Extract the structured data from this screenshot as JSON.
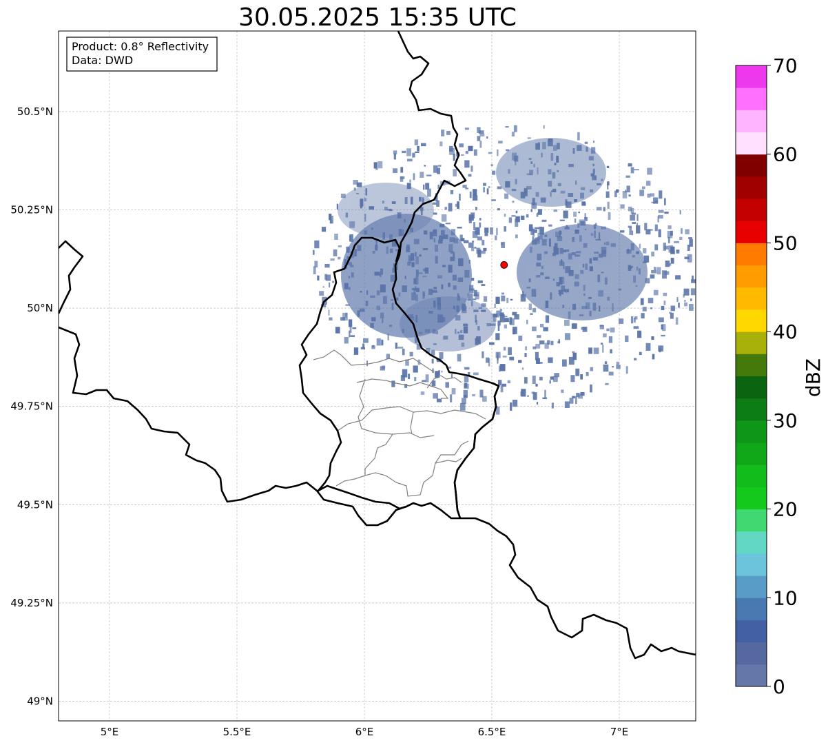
{
  "title": "30.05.2025 15:35 UTC",
  "info_box": {
    "product": "Product: 0.8° Reflectivity",
    "data": "Data: DWD"
  },
  "axes": {
    "lon_range": [
      4.8,
      7.3
    ],
    "lat_range": [
      48.95,
      50.705
    ],
    "x_ticks": [
      {
        "value": 5.0,
        "label": "5°E"
      },
      {
        "value": 5.5,
        "label": "5.5°E"
      },
      {
        "value": 6.0,
        "label": "6°E"
      },
      {
        "value": 6.5,
        "label": "6.5°E"
      },
      {
        "value": 7.0,
        "label": "7°E"
      }
    ],
    "y_ticks": [
      {
        "value": 49.0,
        "label": "49°N"
      },
      {
        "value": 49.25,
        "label": "49.25°N"
      },
      {
        "value": 49.5,
        "label": "49.5°N"
      },
      {
        "value": 49.75,
        "label": "49.75°N"
      },
      {
        "value": 50.0,
        "label": "50°N"
      },
      {
        "value": 50.25,
        "label": "50.25°N"
      },
      {
        "value": 50.5,
        "label": "50.5°N"
      }
    ],
    "grid": true
  },
  "radar_site": {
    "lon": 6.548,
    "lat": 50.11,
    "color": "#ff0000"
  },
  "colorbar": {
    "label": "dBZ",
    "min": 0,
    "max": 70,
    "ticks": [
      {
        "value": 0,
        "label": "0"
      },
      {
        "value": 10,
        "label": "10"
      },
      {
        "value": 20,
        "label": "20"
      },
      {
        "value": 30,
        "label": "30"
      },
      {
        "value": 40,
        "label": "40"
      },
      {
        "value": 50,
        "label": "50"
      },
      {
        "value": 60,
        "label": "60"
      },
      {
        "value": 70,
        "label": "70"
      }
    ],
    "colors": [
      "#6576a8",
      "#5668a0",
      "#4460a4",
      "#4a78b0",
      "#5a9cc8",
      "#6cc4dc",
      "#62d8c4",
      "#40d870",
      "#14c81c",
      "#12bc1a",
      "#10a818",
      "#0e9616",
      "#0c7c14",
      "#0a6410",
      "#447a0a",
      "#a8b00a",
      "#ffd800",
      "#ffba00",
      "#ff9c00",
      "#ff7c00",
      "#e80000",
      "#c40000",
      "#a00000",
      "#800000",
      "#ffe0ff",
      "#ffb4ff",
      "#ff70ff",
      "#ee38ee"
    ]
  },
  "precip_color": "#5a74a8"
}
